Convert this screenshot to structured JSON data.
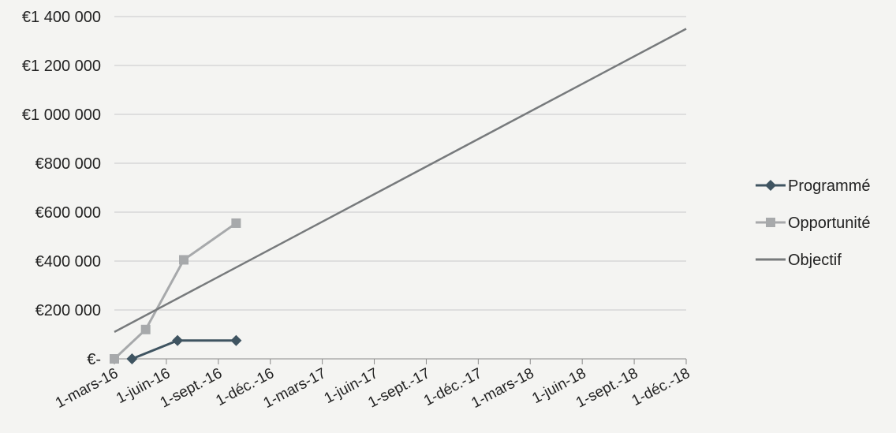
{
  "chart_data": {
    "type": "line",
    "title": "",
    "xlabel": "",
    "ylabel": "",
    "y_ticks": [
      "€-",
      "€200 000",
      "€400 000",
      "€600 000",
      "€800 000",
      "€1 000 000",
      "€1 200 000",
      "€1 400 000"
    ],
    "x_ticks": [
      "1-mars-16",
      "1-juin-16",
      "1-sept.-16",
      "1-déc.-16",
      "1-mars-17",
      "1-juin-17",
      "1-sept.-17",
      "1-déc.-17",
      "1-mars-18",
      "1-juin-18",
      "1-sept.-18",
      "1-déc.-18"
    ],
    "ylim": [
      0,
      1400000
    ],
    "grid": true,
    "legend_position": "right",
    "series": [
      {
        "name": "Programmé",
        "color": "#3f5461",
        "marker": "diamond",
        "points": [
          {
            "x": "2016-04-01",
            "y": 0
          },
          {
            "x": "2016-06-20",
            "y": 75000
          },
          {
            "x": "2016-10-01",
            "y": 75000
          }
        ]
      },
      {
        "name": "Opportunité",
        "color": "#a7a9ab",
        "marker": "square",
        "points": [
          {
            "x": "2016-03-01",
            "y": 0
          },
          {
            "x": "2016-04-25",
            "y": 120000
          },
          {
            "x": "2016-07-01",
            "y": 405000
          },
          {
            "x": "2016-10-01",
            "y": 555000
          }
        ]
      },
      {
        "name": "Objectif",
        "color": "#777a7c",
        "marker": "none",
        "points": [
          {
            "x": "2016-03-01",
            "y": 110000
          },
          {
            "x": "2018-12-01",
            "y": 1350000
          }
        ]
      }
    ]
  }
}
